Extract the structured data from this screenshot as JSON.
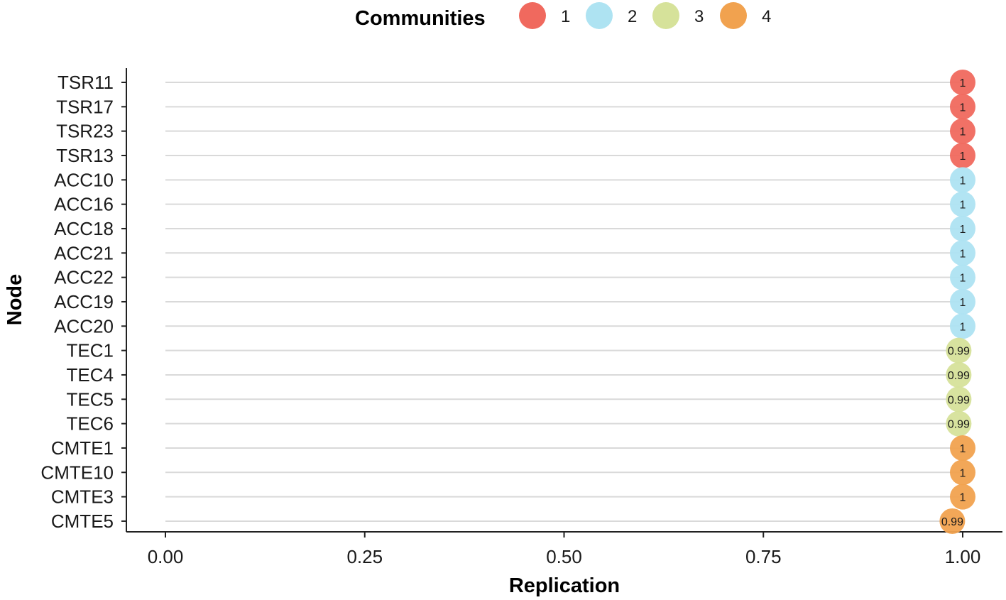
{
  "chart_data": {
    "type": "scatter",
    "xlabel": "Replication",
    "ylabel": "Node",
    "xlim": [
      0,
      1
    ],
    "x_ticks": [
      "0.00",
      "0.25",
      "0.50",
      "0.75",
      "1.00"
    ],
    "x_tick_values": [
      0,
      0.25,
      0.5,
      0.75,
      1.0
    ],
    "grid": "horizontal",
    "legend": {
      "title": "Communities",
      "placement": "top",
      "items": [
        {
          "label": "1",
          "color": "#f0695e"
        },
        {
          "label": "2",
          "color": "#aee3f2"
        },
        {
          "label": "3",
          "color": "#d6e29a"
        },
        {
          "label": "4",
          "color": "#f1a24f"
        }
      ]
    },
    "points": [
      {
        "node": "TSR11",
        "value": 1.0,
        "label": "1",
        "community": "1"
      },
      {
        "node": "TSR17",
        "value": 1.0,
        "label": "1",
        "community": "1"
      },
      {
        "node": "TSR23",
        "value": 1.0,
        "label": "1",
        "community": "1"
      },
      {
        "node": "TSR13",
        "value": 1.0,
        "label": "1",
        "community": "1"
      },
      {
        "node": "ACC10",
        "value": 1.0,
        "label": "1",
        "community": "2"
      },
      {
        "node": "ACC16",
        "value": 1.0,
        "label": "1",
        "community": "2"
      },
      {
        "node": "ACC18",
        "value": 1.0,
        "label": "1",
        "community": "2"
      },
      {
        "node": "ACC21",
        "value": 1.0,
        "label": "1",
        "community": "2"
      },
      {
        "node": "ACC22",
        "value": 1.0,
        "label": "1",
        "community": "2"
      },
      {
        "node": "ACC19",
        "value": 1.0,
        "label": "1",
        "community": "2"
      },
      {
        "node": "ACC20",
        "value": 1.0,
        "label": "1",
        "community": "2"
      },
      {
        "node": "TEC1",
        "value": 0.995,
        "label": "0.99",
        "community": "3"
      },
      {
        "node": "TEC4",
        "value": 0.995,
        "label": "0.99",
        "community": "3"
      },
      {
        "node": "TEC5",
        "value": 0.995,
        "label": "0.99",
        "community": "3"
      },
      {
        "node": "TEC6",
        "value": 0.995,
        "label": "0.99",
        "community": "3"
      },
      {
        "node": "CMTE1",
        "value": 1.0,
        "label": "1",
        "community": "4"
      },
      {
        "node": "CMTE10",
        "value": 1.0,
        "label": "1",
        "community": "4"
      },
      {
        "node": "CMTE3",
        "value": 1.0,
        "label": "1",
        "community": "4"
      },
      {
        "node": "CMTE5",
        "value": 0.987,
        "label": "0.99",
        "community": "4"
      }
    ]
  }
}
